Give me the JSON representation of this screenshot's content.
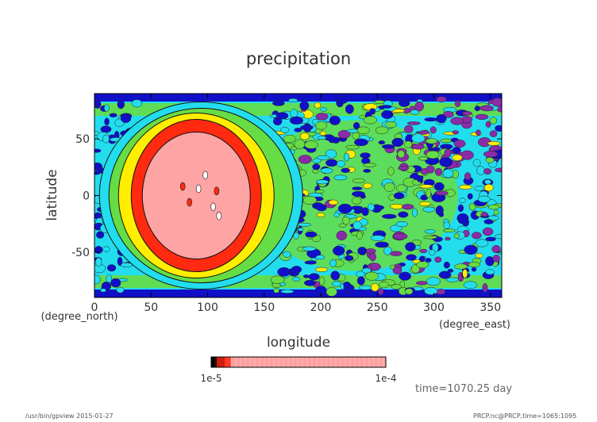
{
  "chart_data": {
    "type": "heatmap",
    "title": "precipitation",
    "xlabel": "longitude",
    "ylabel": "latitude",
    "x_unit": "(degree_east)",
    "y_unit": "(degree_north)",
    "xlim": [
      0,
      360
    ],
    "ylim": [
      -90,
      90
    ],
    "x_ticks": [
      0,
      50,
      100,
      150,
      200,
      250,
      300,
      350
    ],
    "y_ticks": [
      -50,
      0,
      50
    ],
    "grid": false,
    "colorbar": {
      "left_label": "1e-5",
      "right_label": "1e-4",
      "colors": [
        "#000000",
        "#2a0a0a",
        "#cc1e10",
        "#ff3a2a",
        "#ff9f9f"
      ]
    },
    "palette": {
      "purple": "#8a2ca8",
      "blue": "#1010c8",
      "cyan": "#22ddee",
      "green": "#66dd44",
      "yellow": "#ffee00",
      "red": "#ff2a10",
      "pink": "#ffa4a4"
    },
    "feature": {
      "center_lon": 90,
      "center_lat": 0,
      "note_hidden": false
    }
  },
  "annotations": {
    "time": "time=1070.25 day",
    "footer_left": "/usr/bin/gpview  2015-01-27",
    "footer_right": "PRCP.nc@PRCP,time=1065:1095"
  }
}
